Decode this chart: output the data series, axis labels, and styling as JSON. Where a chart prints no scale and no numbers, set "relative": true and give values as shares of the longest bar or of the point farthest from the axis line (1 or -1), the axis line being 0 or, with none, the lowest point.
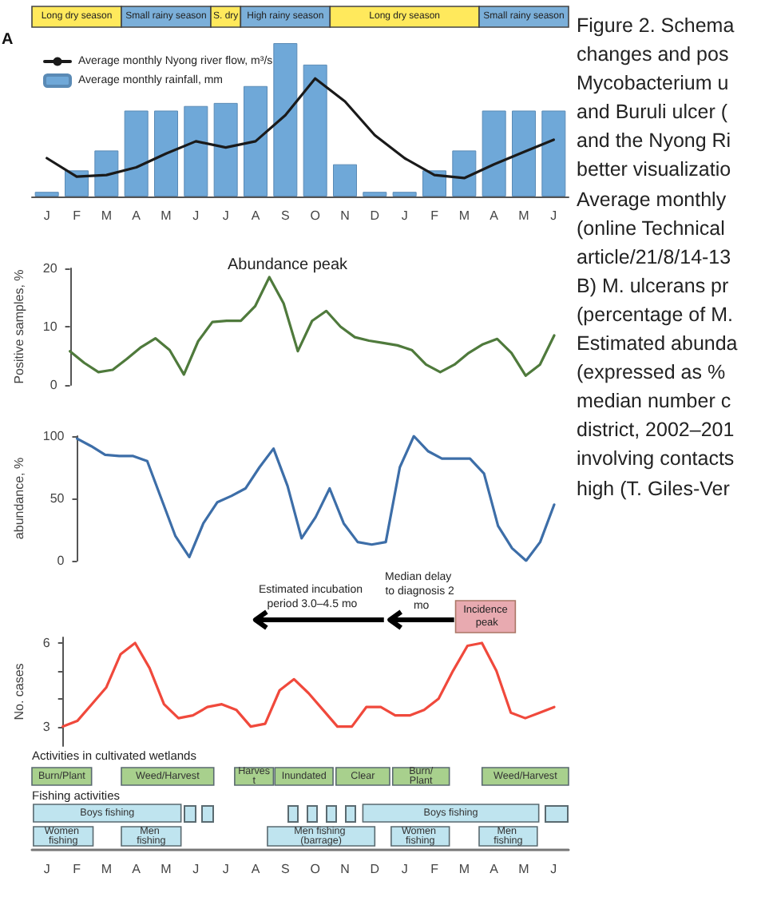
{
  "chart_data": [
    {
      "type": "other",
      "annotations": [
        "Long dry season",
        "Small rainy season",
        "S. dry",
        "High rainy season",
        "Long dry season",
        "Small rainy season"
      ]
    },
    {
      "type": "bar",
      "categories": [
        "J",
        "F",
        "M",
        "A",
        "M",
        "J",
        "J",
        "A",
        "S",
        "O",
        "N",
        "D",
        "J",
        "F",
        "M",
        "A",
        "M",
        "J"
      ],
      "relative": true,
      "legend": "top left",
      "marker": "none",
      "annotations": [
        "A"
      ],
      "series": [
        {
          "name": "Average monthly Nyong river flow, m³/s",
          "type": "line",
          "color": "#1a1a1a",
          "values": [
            0.25,
            0.13,
            0.14,
            0.19,
            0.28,
            0.36,
            0.32,
            0.36,
            0.53,
            0.77,
            0.62,
            0.4,
            0.25,
            0.14,
            0.12,
            0.21,
            0.29,
            0.37
          ]
        },
        {
          "name": "Average monthly rainfall, mm",
          "type": "bar",
          "color": "#6fa8d8",
          "values": [
            0.03,
            0.17,
            0.3,
            0.56,
            0.56,
            0.59,
            0.61,
            0.72,
            1,
            0.86,
            0.21,
            0.03,
            0.03,
            0.17,
            0.3,
            0.56,
            0.56,
            0.56
          ]
        }
      ]
    },
    {
      "type": "line",
      "title": "Abundance peak",
      "ylabel": "Positive samples, %",
      "categories": [
        null,
        null,
        null,
        null,
        null,
        null,
        null,
        null,
        null,
        null,
        null,
        null,
        null,
        null,
        null,
        null,
        null,
        null,
        null,
        null,
        null,
        null,
        null,
        null,
        null,
        null,
        null,
        null,
        null,
        null,
        null,
        null,
        null,
        null,
        null
      ],
      "values": [
        5.8,
        3.8,
        2.2,
        2.6,
        4.5,
        6.5,
        8.0,
        6.0,
        1.8,
        7.5,
        10.8,
        11.0,
        11.0,
        13.5,
        18.5,
        14,
        5.8,
        11.0,
        12.7,
        10.0,
        8.2,
        7.6,
        7.2,
        6.8,
        6.0,
        3.5,
        2.2,
        3.5,
        5.5,
        7.0,
        7.9,
        5.5,
        1.6,
        3.5,
        8.5
      ],
      "color": "#4f7a3c",
      "ylim": [
        0,
        20
      ],
      "yticks": [
        0,
        10,
        20
      ],
      "tick_labels": "y",
      "marker": "none"
    },
    {
      "type": "line",
      "ylabel": "abundance, %",
      "categories": [
        null,
        null,
        null,
        null,
        null,
        null,
        null,
        null,
        null,
        null,
        null,
        null,
        null,
        null,
        null,
        null,
        null,
        null,
        null,
        null,
        null,
        null,
        null,
        null,
        null,
        null,
        null,
        null,
        null,
        null,
        null,
        null,
        null,
        null,
        null
      ],
      "values": [
        98,
        92,
        85,
        84,
        84,
        80,
        50,
        20,
        3,
        30,
        47,
        52,
        58,
        75,
        90,
        60,
        18,
        35,
        58,
        30,
        15,
        13,
        15,
        75,
        100,
        88,
        82,
        82,
        82,
        70,
        28,
        10,
        0,
        15,
        45
      ],
      "color": "#3d6ea8",
      "ylim": [
        0,
        100
      ],
      "yticks": [
        0,
        50,
        100
      ],
      "tick_labels": "y",
      "marker": "none"
    },
    {
      "type": "line",
      "ylabel": "No. cases",
      "categories": [
        null,
        null,
        null,
        null,
        null,
        null,
        null,
        null,
        null,
        null,
        null,
        null,
        null,
        null,
        null,
        null,
        null,
        null,
        null,
        null,
        null,
        null,
        null,
        null,
        null,
        null,
        null,
        null,
        null,
        null,
        null,
        null,
        null,
        null,
        null
      ],
      "values": [
        3.0,
        3.2,
        3.8,
        4.4,
        5.6,
        6.0,
        5.1,
        3.8,
        3.3,
        3.4,
        3.7,
        3.8,
        3.6,
        3.0,
        3.1,
        4.3,
        4.7,
        4.2,
        3.6,
        3.0,
        3.0,
        3.7,
        3.7,
        3.4,
        3.4,
        3.6,
        4.0,
        5.0,
        5.9,
        6.0,
        5.0,
        3.5,
        3.3,
        3.5,
        3.7
      ],
      "color": "#f0493c",
      "ylim": [
        2.3,
        6.2
      ],
      "yticks": [
        3,
        {
          "value": 4,
          "label": null
        },
        {
          "value": 5,
          "label": null
        },
        6
      ],
      "tick_labels": "y",
      "marker": "none",
      "annotations": [
        "Estimated incubation period 3.0–4.5 mo",
        "Median delay to diagnosis 2 mo",
        "Incidence peak"
      ]
    },
    {
      "type": "other",
      "categories": [
        "J",
        "F",
        "M",
        "A",
        "M",
        "J",
        "J",
        "A",
        "S",
        "O",
        "N",
        "D",
        "J",
        "F",
        "M",
        "A",
        "M",
        "J"
      ],
      "annotations": [
        "Activities in cultivated wetlands",
        "Fishing activities",
        "Burn/Plant",
        "Weed/Harvest",
        "Harvest",
        "Inundated",
        "Clear",
        "Burn/Plant",
        "Weed/Harvest",
        "Boys fishing",
        "Boys fishing",
        "Women fishing",
        "Men fishing",
        "Men fishing (barrage)",
        "Women fishing",
        "Men fishing"
      ]
    },
    {
      "type": "other",
      "annotations": [
        "Figure 2. Schema",
        "changes and pos",
        "Mycobacterium u",
        "and Buruli ulcer (",
        "and the Nyong Ri",
        "better visualizatio",
        "Average monthly",
        "(online Technical",
        "article/21/8/14-13",
        "B) M. ulcerans pr",
        "(percentage of M.",
        "Estimated abunda",
        "(expressed as %",
        "median number c",
        "district, 2002–201",
        "involving contacts",
        "high (T. Giles-Ver"
      ]
    }
  ]
}
